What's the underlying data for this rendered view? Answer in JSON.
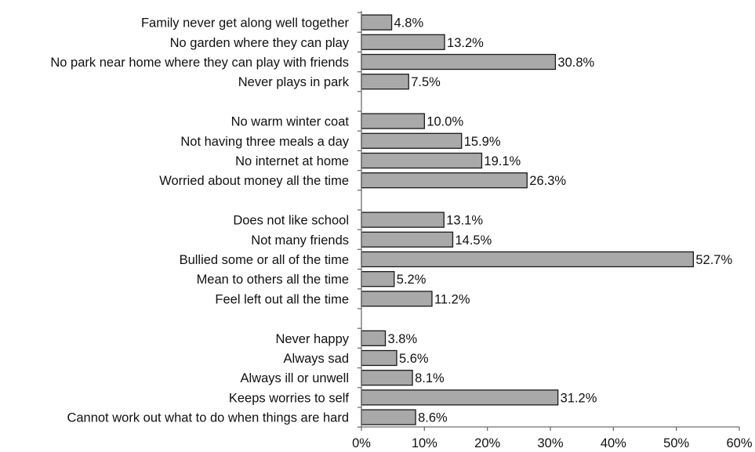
{
  "chart_data": {
    "type": "bar",
    "orientation": "horizontal",
    "bar_color": "#a9a9a9",
    "bar_outline_color": "#1a1a1a",
    "value_format": "percent_one_decimal",
    "xlim": [
      0,
      60
    ],
    "x_ticks": [
      "0%",
      "10%",
      "20%",
      "30%",
      "40%",
      "50%",
      "60%"
    ],
    "legend": "none",
    "grid": false,
    "groups": [
      {
        "categories": [
          "Family never get along well together",
          "No garden where they can play",
          "No park near home where they can play with friends",
          "Never plays in park"
        ],
        "values": [
          4.8,
          13.2,
          30.8,
          7.5
        ]
      },
      {
        "categories": [
          "No warm winter coat",
          "Not having three meals a day",
          "No internet at home",
          "Worried about money all the time"
        ],
        "values": [
          10.0,
          15.9,
          19.1,
          26.3
        ]
      },
      {
        "categories": [
          "Does not like school",
          "Not many friends",
          "Bullied some or all of the time",
          "Mean to others all the time",
          "Feel left out all the time"
        ],
        "values": [
          13.1,
          14.5,
          52.7,
          5.2,
          11.2
        ]
      },
      {
        "categories": [
          "Never happy",
          "Always sad",
          "Always ill or unwell",
          "Keeps worries to self",
          "Cannot work out what to do when things are hard"
        ],
        "values": [
          3.8,
          5.6,
          8.1,
          31.2,
          8.6
        ]
      }
    ]
  }
}
